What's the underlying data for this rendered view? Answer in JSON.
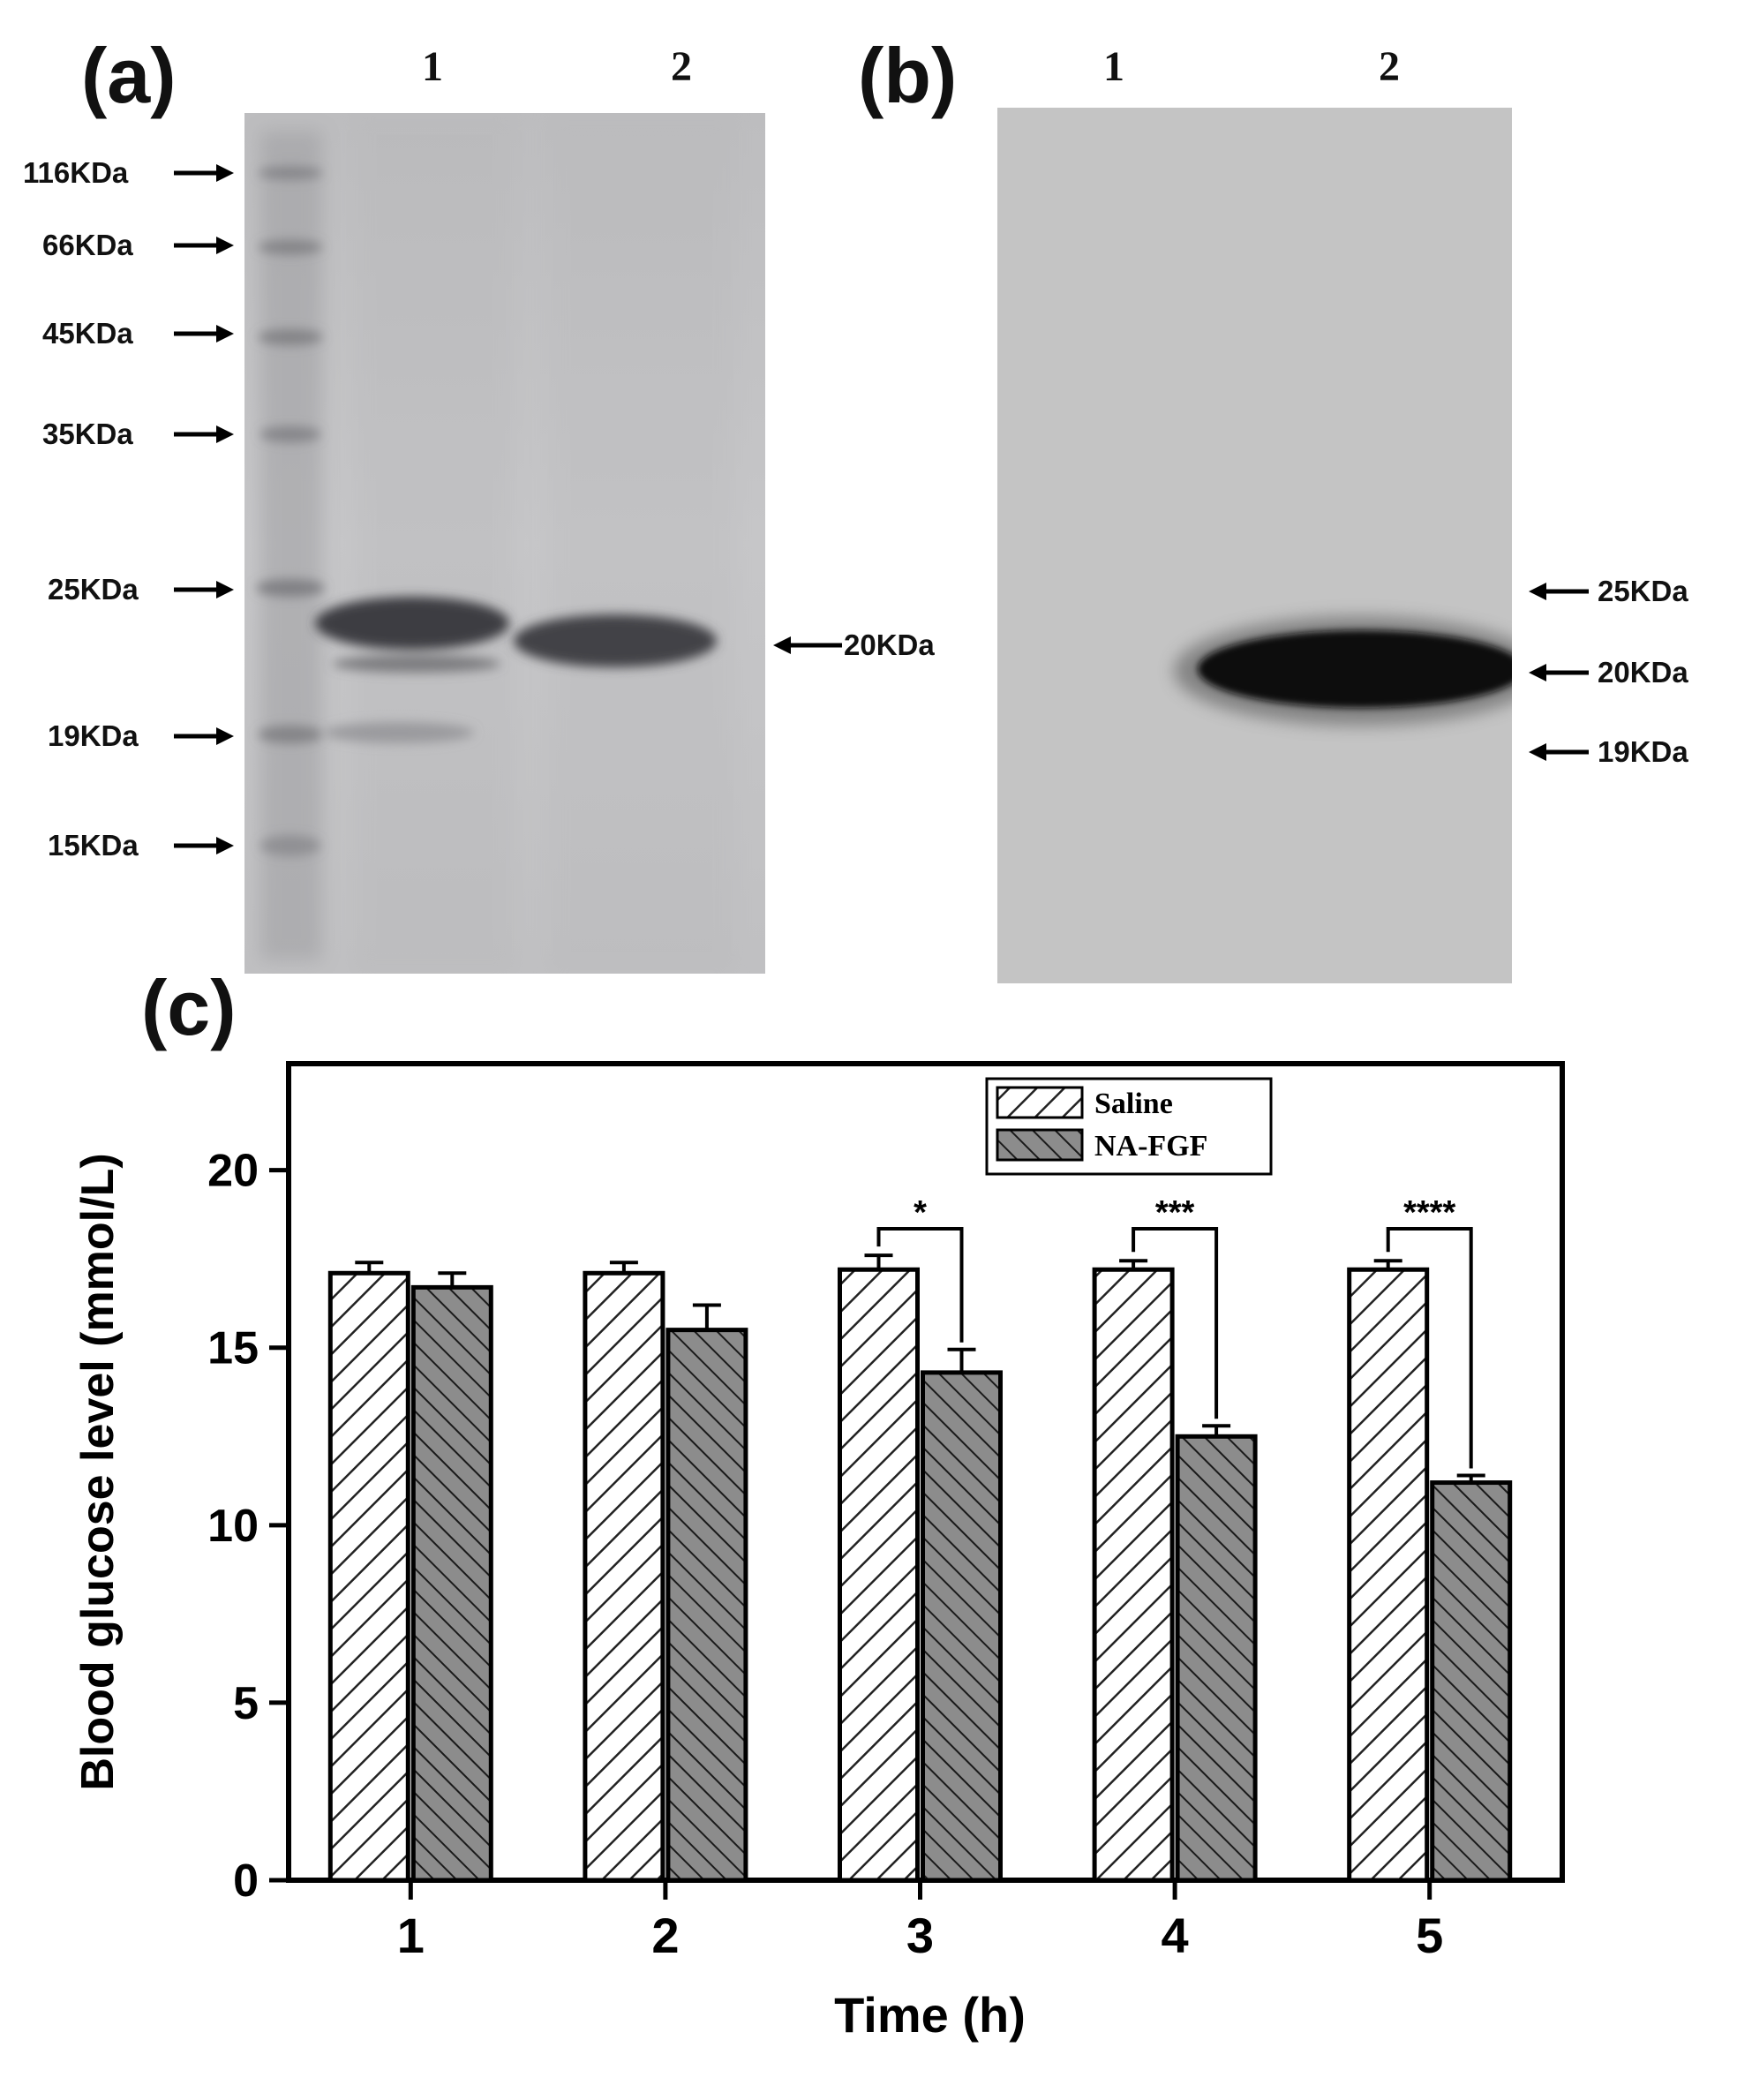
{
  "panel_a": {
    "letter": "(a)",
    "lane_labels": [
      "1",
      "2"
    ],
    "markers": [
      "116KDa",
      "66KDa",
      "45KDa",
      "35KDa",
      "25KDa",
      "19KDa",
      "15KDa"
    ],
    "band_label": "20KDa"
  },
  "panel_b": {
    "letter": "(b)",
    "lane_labels": [
      "1",
      "2"
    ],
    "markers": [
      "25KDa",
      "20KDa",
      "19KDa"
    ]
  },
  "panel_c": {
    "letter": "(c)"
  },
  "chart_data": {
    "type": "bar",
    "categories": [
      "1",
      "2",
      "3",
      "4",
      "5"
    ],
    "series": [
      {
        "name": "Saline",
        "values": [
          17.1,
          17.1,
          17.2,
          17.2,
          17.2
        ],
        "errors": [
          0.3,
          0.3,
          0.4,
          0.25,
          0.25
        ],
        "pattern": "diagonal-light"
      },
      {
        "name": "NA-FGF",
        "values": [
          16.7,
          15.5,
          14.3,
          12.5,
          11.2
        ],
        "errors": [
          0.4,
          0.7,
          0.65,
          0.3,
          0.2
        ],
        "pattern": "diagonal-dark"
      }
    ],
    "significance": [
      "",
      "",
      "*",
      "***",
      "****"
    ],
    "xlabel": "Time (h)",
    "ylabel": "Blood glucose level (mmol/L)",
    "ylim": [
      0,
      23
    ],
    "yticks": [
      "0",
      "5",
      "10",
      "15",
      "20"
    ],
    "legend_position": "top-right",
    "grid": false
  }
}
